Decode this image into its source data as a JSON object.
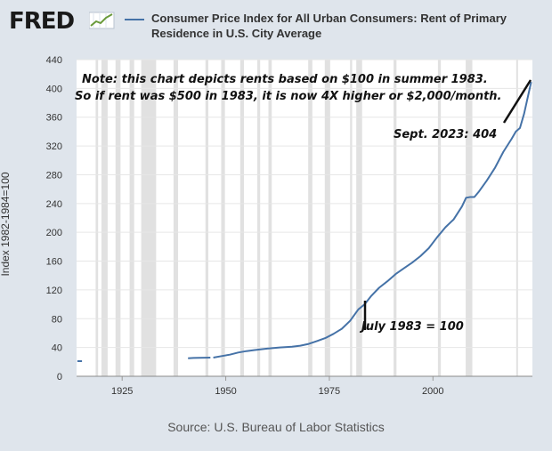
{
  "header": {
    "logo_text": "FRED",
    "legend_label": "Consumer Price Index for All Urban Consumers: Rent of Primary Residence in U.S. City Average"
  },
  "footer": {
    "source": "Source: U.S. Bureau of Labor Statistics"
  },
  "colors": {
    "background": "#dfe5ec",
    "plot_bg": "#ffffff",
    "line": "#4572a7",
    "recession": "#e1e1e1"
  },
  "chart_data": {
    "type": "line",
    "title": "Consumer Price Index for All Urban Consumers: Rent of Primary Residence in U.S. City Average",
    "ylabel": "Index 1982-1984=100",
    "xlabel": "",
    "xlim": [
      1914,
      2024
    ],
    "ylim": [
      0,
      440
    ],
    "x_ticks": [
      1925,
      1950,
      1975,
      2000
    ],
    "y_ticks": [
      0,
      40,
      80,
      120,
      160,
      200,
      240,
      280,
      320,
      360,
      400,
      440
    ],
    "grid": true,
    "recessions": [
      [
        1918.6,
        1919.2
      ],
      [
        1920,
        1921.5
      ],
      [
        1923.4,
        1924.6
      ],
      [
        1926.8,
        1927.9
      ],
      [
        1929.6,
        1933.2
      ],
      [
        1937.4,
        1938.5
      ],
      [
        1945.1,
        1945.8
      ],
      [
        1948.9,
        1949.8
      ],
      [
        1953.5,
        1954.4
      ],
      [
        1957.6,
        1958.3
      ],
      [
        1960.3,
        1961.1
      ],
      [
        1969.9,
        1970.9
      ],
      [
        1973.9,
        1975.2
      ],
      [
        1980,
        1980.5
      ],
      [
        1981.5,
        1982.9
      ],
      [
        1990.5,
        1991.2
      ],
      [
        2001.2,
        2001.9
      ],
      [
        2007.9,
        2009.5
      ],
      [
        2020.1,
        2020.4
      ]
    ],
    "series": [
      {
        "name": "Consumer Price Index for All Urban Consumers: Rent of Primary Residence in U.S. City Average",
        "segments": [
          {
            "x": [
              1914.2,
              1915.3
            ],
            "y": [
              21,
              21
            ]
          },
          {
            "x": [
              1940.9,
              1942.2,
              1943.5,
              1945,
              1946.3
            ],
            "y": [
              25,
              25.5,
              25.7,
              25.8,
              25.9
            ]
          },
          {
            "x": [
              1947,
              1949,
              1951,
              1953,
              1955,
              1957,
              1960,
              1963,
              1966,
              1968,
              1970,
              1972,
              1974,
              1976,
              1978,
              1980,
              1982,
              1983.5,
              1985,
              1987,
              1989,
              1991,
              1993,
              1995,
              1997,
              1999,
              2001,
              2003,
              2005,
              2007,
              2008,
              2009,
              2010,
              2011,
              2013,
              2015,
              2017,
              2019,
              2020,
              2021,
              2022,
              2023.7
            ],
            "y": [
              26,
              28,
              30,
              33,
              35,
              36.5,
              38.5,
              40,
              41,
              42.5,
              45,
              49,
              53,
              59,
              66,
              77,
              93,
              100,
              111,
              123,
              132,
              142,
              150,
              158,
              167,
              178,
              193,
              207,
              218,
              236,
              248,
              249,
              249,
              256,
              272,
              290,
              312,
              330,
              340,
              345,
              365,
              409
            ]
          }
        ]
      }
    ],
    "annotations": [
      {
        "text": "Note: this chart depicts rents based on $100 in summer 1983."
      },
      {
        "text": "So if rent was $500 in 1983, it is now 4X higher or $2,000/month."
      },
      {
        "text": "Sept. 2023: 404"
      },
      {
        "text": "July 1983 = 100"
      }
    ]
  }
}
